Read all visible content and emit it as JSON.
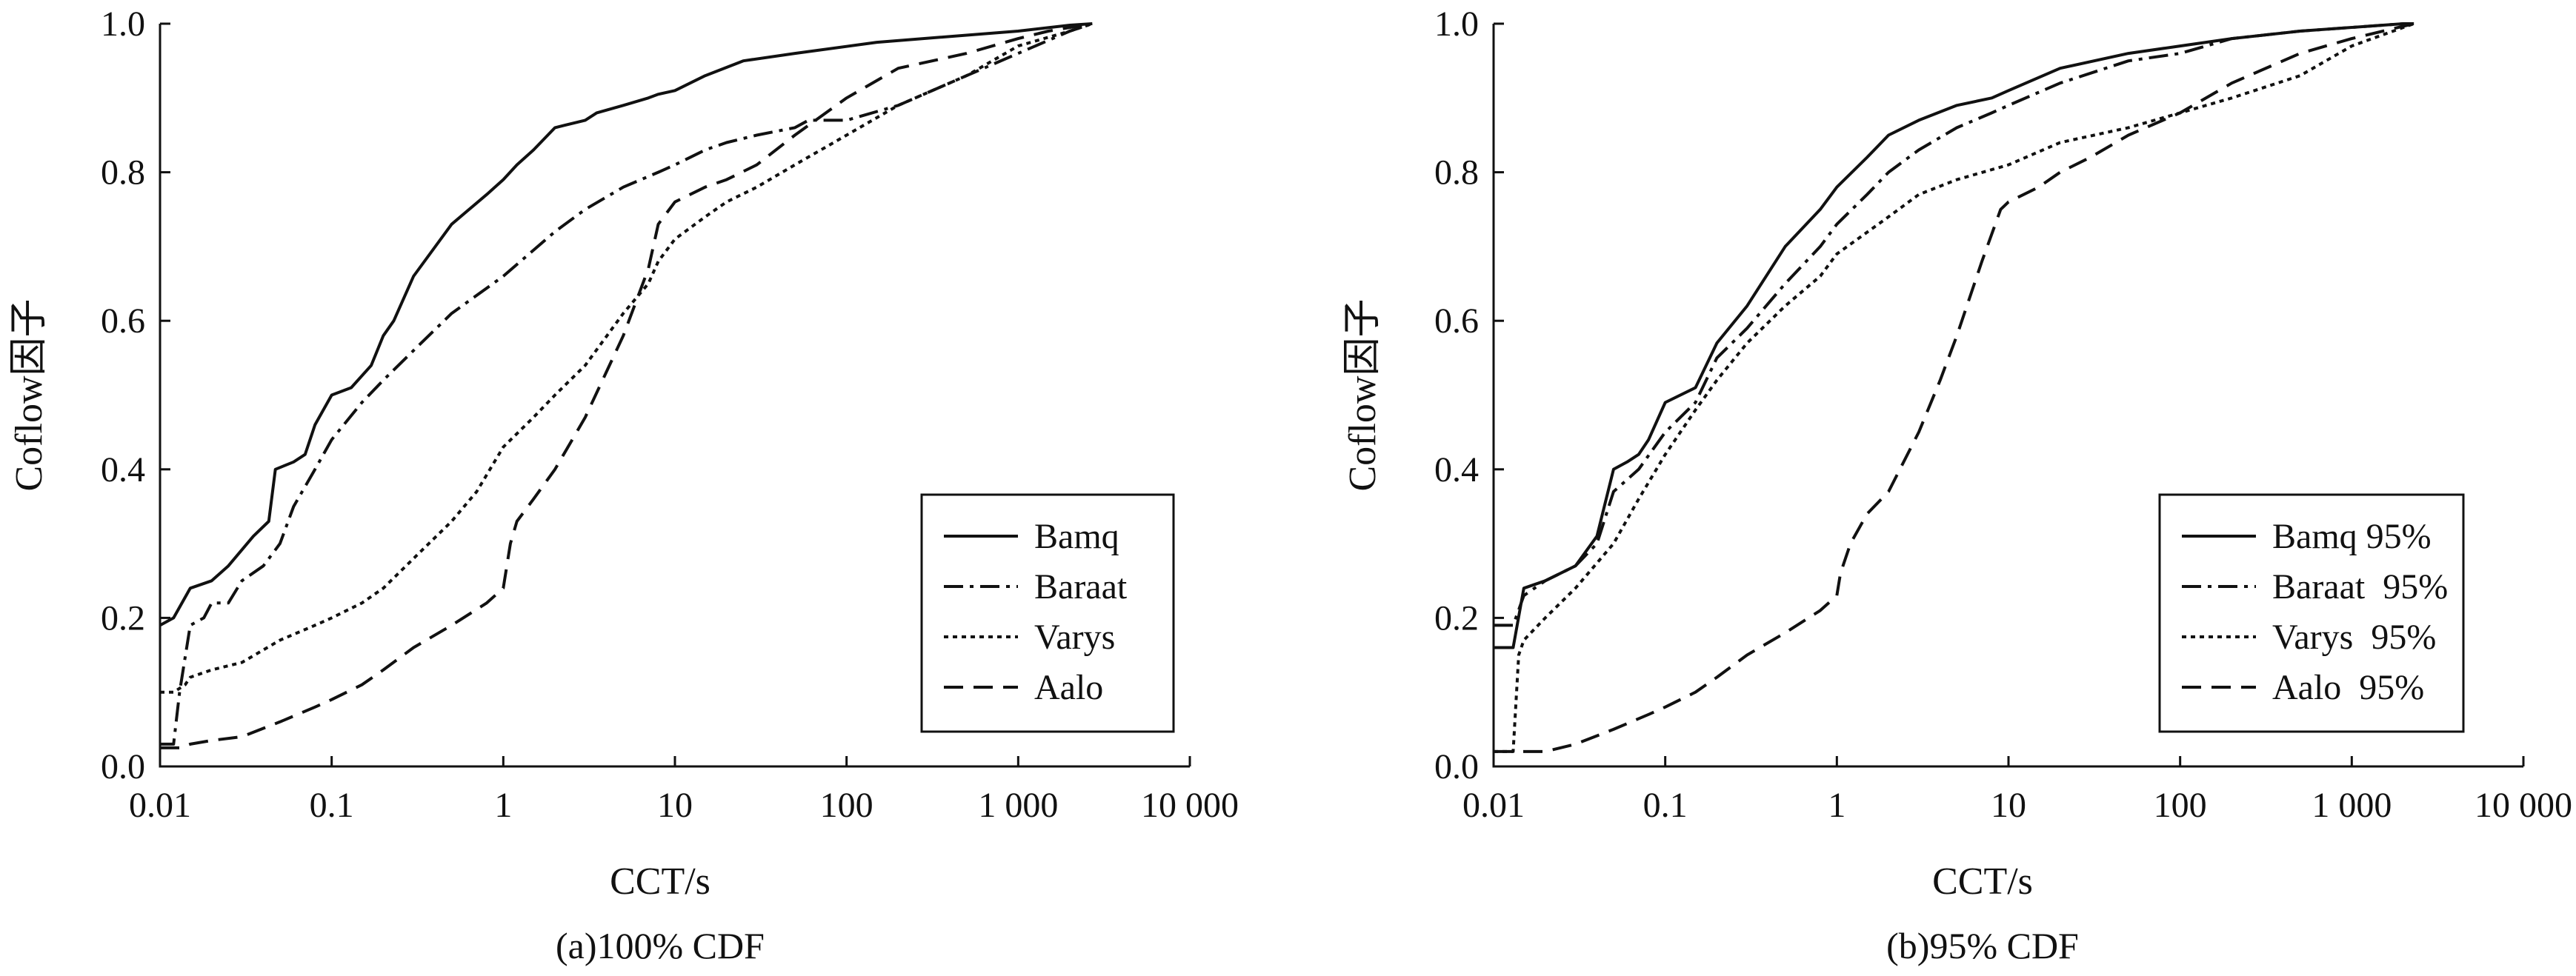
{
  "chart_data": [
    {
      "type": "line",
      "caption": "(a)100% CDF",
      "xlabel": "CCT/s",
      "ylabel": "Coflow因子",
      "x_scale": "log",
      "xlim": [
        0.01,
        10000
      ],
      "ylim": [
        0,
        1.0
      ],
      "x_ticks": [
        0.01,
        0.1,
        1,
        10,
        100,
        1000,
        10000
      ],
      "x_tick_labels": [
        "0.01",
        "0.1",
        "1",
        "10",
        "100",
        "1 000",
        "10 000"
      ],
      "y_ticks": [
        0,
        0.2,
        0.4,
        0.6,
        0.8,
        1.0
      ],
      "y_tick_labels": [
        "0.0",
        "0.2",
        "0.4",
        "0.6",
        "0.8",
        "1.0"
      ],
      "grid": false,
      "legend_position": "bottom-right",
      "series": [
        {
          "name": "Bamq",
          "dash": "solid",
          "x": [
            0.01,
            0.012,
            0.015,
            0.02,
            0.025,
            0.035,
            0.043,
            0.047,
            0.06,
            0.07,
            0.08,
            0.1,
            0.13,
            0.17,
            0.2,
            0.23,
            0.3,
            0.5,
            0.8,
            1.0,
            1.2,
            1.5,
            2.0,
            3.0,
            3.5,
            5.0,
            7.0,
            8.0,
            10,
            15,
            25,
            50,
            150,
            1000,
            2000,
            2700
          ],
          "y": [
            0.19,
            0.2,
            0.24,
            0.25,
            0.27,
            0.31,
            0.33,
            0.4,
            0.41,
            0.42,
            0.46,
            0.5,
            0.51,
            0.54,
            0.58,
            0.6,
            0.66,
            0.73,
            0.77,
            0.79,
            0.81,
            0.83,
            0.86,
            0.87,
            0.88,
            0.89,
            0.9,
            0.905,
            0.91,
            0.93,
            0.95,
            0.96,
            0.975,
            0.99,
            0.998,
            1.0
          ]
        },
        {
          "name": "Baraat",
          "dash": "dashdot",
          "x": [
            0.01,
            0.012,
            0.013,
            0.015,
            0.018,
            0.02,
            0.025,
            0.03,
            0.04,
            0.05,
            0.06,
            0.08,
            0.1,
            0.15,
            0.2,
            0.3,
            0.5,
            1.0,
            2.0,
            3.0,
            5.0,
            8.0,
            10,
            15,
            20,
            30,
            50,
            60,
            100,
            200,
            500,
            1000,
            2000,
            2700
          ],
          "y": [
            0.03,
            0.03,
            0.1,
            0.19,
            0.2,
            0.22,
            0.22,
            0.25,
            0.27,
            0.3,
            0.35,
            0.4,
            0.44,
            0.49,
            0.52,
            0.56,
            0.61,
            0.66,
            0.72,
            0.75,
            0.78,
            0.8,
            0.81,
            0.83,
            0.84,
            0.85,
            0.86,
            0.87,
            0.87,
            0.89,
            0.93,
            0.96,
            0.99,
            1.0
          ]
        },
        {
          "name": "Varys",
          "dash": "dotted",
          "x": [
            0.01,
            0.012,
            0.014,
            0.015,
            0.02,
            0.03,
            0.05,
            0.08,
            0.1,
            0.15,
            0.2,
            0.3,
            0.5,
            0.7,
            1.0,
            1.5,
            2.0,
            3.0,
            5.0,
            7.0,
            8.0,
            10,
            15,
            20,
            30,
            50,
            100,
            200,
            500,
            1000,
            2000,
            2700
          ],
          "y": [
            0.1,
            0.1,
            0.11,
            0.12,
            0.13,
            0.14,
            0.17,
            0.19,
            0.2,
            0.22,
            0.24,
            0.28,
            0.33,
            0.37,
            0.43,
            0.47,
            0.5,
            0.54,
            0.61,
            0.65,
            0.68,
            0.71,
            0.74,
            0.76,
            0.78,
            0.81,
            0.85,
            0.89,
            0.93,
            0.97,
            0.99,
            1.0
          ]
        },
        {
          "name": "Aalo",
          "dash": "dashed",
          "x": [
            0.01,
            0.013,
            0.015,
            0.02,
            0.03,
            0.05,
            0.08,
            0.1,
            0.15,
            0.2,
            0.3,
            0.5,
            0.8,
            1.0,
            1.1,
            1.2,
            1.5,
            2.0,
            3.0,
            5.0,
            7.0,
            8.0,
            10,
            15,
            20,
            30,
            50,
            100,
            200,
            500,
            1000,
            1500,
            2700
          ],
          "y": [
            0.025,
            0.025,
            0.03,
            0.035,
            0.04,
            0.06,
            0.08,
            0.09,
            0.11,
            0.13,
            0.16,
            0.19,
            0.22,
            0.24,
            0.3,
            0.33,
            0.36,
            0.4,
            0.47,
            0.58,
            0.67,
            0.73,
            0.76,
            0.78,
            0.79,
            0.81,
            0.85,
            0.9,
            0.94,
            0.96,
            0.98,
            0.99,
            1.0
          ]
        }
      ]
    },
    {
      "type": "line",
      "caption": "(b)95% CDF",
      "xlabel": "CCT/s",
      "ylabel": "Coflow因子",
      "x_scale": "log",
      "xlim": [
        0.01,
        10000
      ],
      "ylim": [
        0,
        1.0
      ],
      "x_ticks": [
        0.01,
        0.1,
        1,
        10,
        100,
        1000,
        10000
      ],
      "x_tick_labels": [
        "0.01",
        "0.1",
        "1",
        "10",
        "100",
        "1 000",
        "10 000"
      ],
      "y_ticks": [
        0,
        0.2,
        0.4,
        0.6,
        0.8,
        1.0
      ],
      "y_tick_labels": [
        "0.0",
        "0.2",
        "0.4",
        "0.6",
        "0.8",
        "1.0"
      ],
      "grid": false,
      "legend_position": "bottom-right",
      "series": [
        {
          "name": "Bamq 95%",
          "dash": "solid",
          "x": [
            0.01,
            0.013,
            0.015,
            0.02,
            0.03,
            0.04,
            0.05,
            0.06,
            0.07,
            0.08,
            0.1,
            0.15,
            0.2,
            0.3,
            0.5,
            0.8,
            1.0,
            1.5,
            2.0,
            3.0,
            5.0,
            8.0,
            10,
            20,
            50,
            100,
            200,
            500,
            1000,
            2000,
            2300
          ],
          "y": [
            0.16,
            0.16,
            0.24,
            0.25,
            0.27,
            0.31,
            0.4,
            0.41,
            0.42,
            0.44,
            0.49,
            0.51,
            0.57,
            0.62,
            0.7,
            0.75,
            0.78,
            0.82,
            0.85,
            0.87,
            0.89,
            0.9,
            0.91,
            0.94,
            0.96,
            0.97,
            0.98,
            0.99,
            0.995,
            1.0,
            1.0
          ]
        },
        {
          "name": "Baraat  95%",
          "dash": "dashdot",
          "x": [
            0.01,
            0.013,
            0.015,
            0.02,
            0.03,
            0.04,
            0.05,
            0.07,
            0.1,
            0.15,
            0.2,
            0.3,
            0.5,
            0.8,
            1.0,
            1.5,
            2.0,
            3.0,
            5.0,
            8.0,
            10,
            20,
            50,
            100,
            200,
            500,
            1000,
            2000,
            2300
          ],
          "y": [
            0.19,
            0.19,
            0.23,
            0.25,
            0.27,
            0.3,
            0.37,
            0.4,
            0.45,
            0.49,
            0.55,
            0.59,
            0.65,
            0.7,
            0.73,
            0.77,
            0.8,
            0.83,
            0.86,
            0.88,
            0.89,
            0.92,
            0.95,
            0.96,
            0.98,
            0.99,
            0.995,
            1.0,
            1.0
          ]
        },
        {
          "name": "Varys  95%",
          "dash": "dotted",
          "x": [
            0.01,
            0.013,
            0.014,
            0.015,
            0.02,
            0.03,
            0.05,
            0.07,
            0.1,
            0.15,
            0.2,
            0.3,
            0.5,
            0.8,
            1.0,
            2.0,
            3.0,
            5.0,
            10,
            20,
            50,
            100,
            200,
            500,
            1000,
            2000,
            2300
          ],
          "y": [
            0.02,
            0.02,
            0.15,
            0.17,
            0.2,
            0.24,
            0.3,
            0.36,
            0.42,
            0.48,
            0.52,
            0.57,
            0.62,
            0.66,
            0.69,
            0.74,
            0.77,
            0.79,
            0.81,
            0.84,
            0.86,
            0.88,
            0.9,
            0.93,
            0.97,
            0.995,
            1.0
          ]
        },
        {
          "name": "Aalo  95%",
          "dash": "dashed",
          "x": [
            0.01,
            0.013,
            0.015,
            0.02,
            0.03,
            0.05,
            0.08,
            0.1,
            0.15,
            0.2,
            0.3,
            0.5,
            0.8,
            1.0,
            1.05,
            1.2,
            1.5,
            2.0,
            3.0,
            4.0,
            5.0,
            7.0,
            9.0,
            10,
            15,
            20,
            30,
            50,
            100,
            200,
            500,
            1000,
            2300
          ],
          "y": [
            0.02,
            0.02,
            0.02,
            0.02,
            0.03,
            0.05,
            0.07,
            0.08,
            0.1,
            0.12,
            0.15,
            0.18,
            0.21,
            0.23,
            0.26,
            0.3,
            0.34,
            0.37,
            0.45,
            0.52,
            0.58,
            0.68,
            0.75,
            0.76,
            0.78,
            0.8,
            0.82,
            0.85,
            0.88,
            0.92,
            0.96,
            0.98,
            1.0
          ]
        }
      ]
    }
  ]
}
